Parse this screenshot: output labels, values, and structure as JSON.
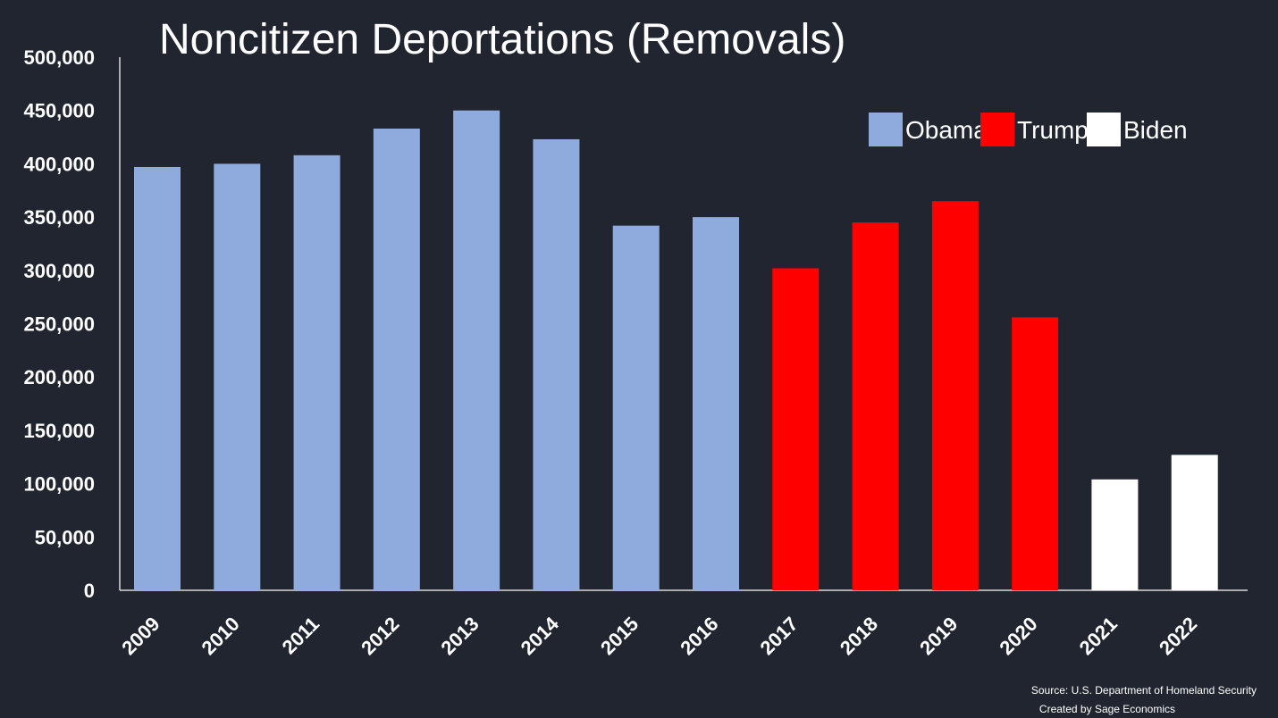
{
  "chart_data": {
    "type": "bar",
    "title": "Noncitizen Deportations (Removals)",
    "categories": [
      "2009",
      "2010",
      "2011",
      "2012",
      "2013",
      "2014",
      "2015",
      "2016",
      "2017",
      "2018",
      "2019",
      "2020",
      "2021",
      "2022"
    ],
    "values": [
      397000,
      400000,
      408000,
      433000,
      450000,
      423000,
      342000,
      350000,
      302000,
      345000,
      365000,
      256000,
      104000,
      127000
    ],
    "groups": [
      "Obama",
      "Obama",
      "Obama",
      "Obama",
      "Obama",
      "Obama",
      "Obama",
      "Obama",
      "Trump",
      "Trump",
      "Trump",
      "Trump",
      "Biden",
      "Biden"
    ],
    "ylim": [
      0,
      500000
    ],
    "yticks": [
      "0",
      "50,000",
      "100,000",
      "150,000",
      "200,000",
      "250,000",
      "300,000",
      "350,000",
      "400,000",
      "450,000",
      "500,000"
    ],
    "legend": [
      {
        "name": "Obama",
        "color": "#8faadc"
      },
      {
        "name": "Trump",
        "color": "#ff0000"
      },
      {
        "name": "Biden",
        "color": "#ffffff"
      }
    ],
    "legend_position": "top-right",
    "grid": false
  },
  "source_line1": "Source: U.S. Department of Homeland Security",
  "source_line2": "Created by Sage Economics"
}
